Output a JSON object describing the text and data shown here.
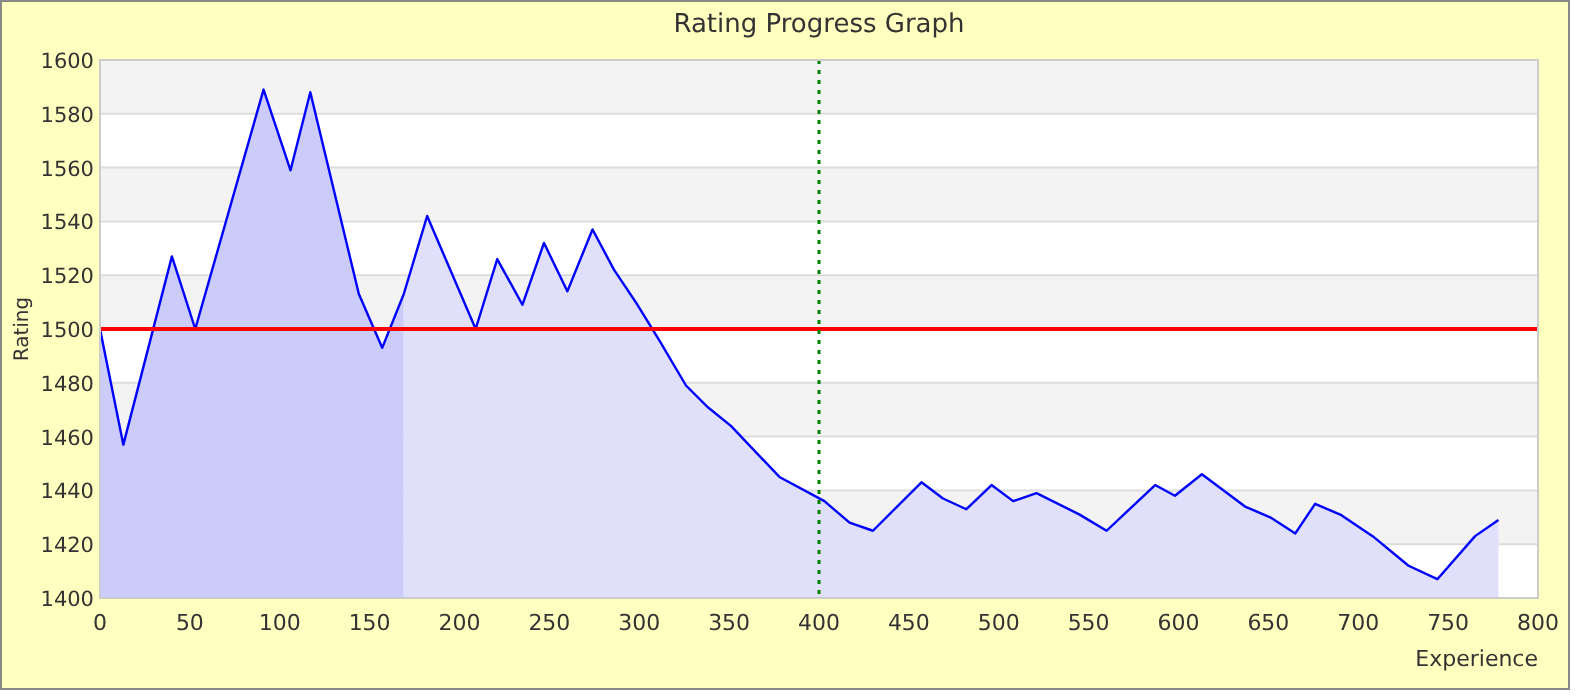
{
  "chart_data": {
    "type": "area",
    "title": "Rating Progress Graph",
    "xlabel": "Experience",
    "ylabel": "Rating",
    "xlim": [
      0,
      800
    ],
    "xticks": [
      0,
      50,
      100,
      150,
      200,
      250,
      300,
      350,
      400,
      450,
      500,
      550,
      600,
      650,
      700,
      750,
      800
    ],
    "ylim": [
      1400,
      1600
    ],
    "yticks": [
      1400,
      1420,
      1440,
      1460,
      1480,
      1500,
      1520,
      1540,
      1560,
      1580,
      1600
    ],
    "grid": "y",
    "series": [
      {
        "color": "#ccccfa",
        "x": [
          0,
          13,
          40,
          53,
          91,
          106,
          117,
          144,
          157,
          169
        ],
        "values": [
          1500,
          1457,
          1527,
          1500,
          1589,
          1559,
          1588,
          1513,
          1493,
          1513
        ]
      },
      {
        "color": "#e0e0fa",
        "x": [
          169,
          182,
          209,
          221,
          235,
          247,
          260,
          274,
          286,
          299,
          311,
          326,
          338,
          351,
          378,
          403,
          417,
          430,
          457,
          469,
          482,
          496,
          508,
          521,
          545,
          560,
          587,
          598,
          613,
          637,
          651,
          665,
          676,
          690,
          708,
          728,
          744,
          765,
          778
        ],
        "values": [
          1513,
          1542,
          1500,
          1526,
          1509,
          1532,
          1514,
          1537,
          1522,
          1509,
          1496,
          1479,
          1471,
          1464,
          1445,
          1436,
          1428,
          1425,
          1443,
          1437,
          1433,
          1442,
          1436,
          1439,
          1431,
          1425,
          1442,
          1438,
          1446,
          1434,
          1430,
          1424,
          1435,
          1431,
          1423,
          1412,
          1407,
          1423,
          1429
        ]
      },
      {
        "type": "line",
        "color": "#0000ff",
        "x": [
          0,
          13,
          40,
          53,
          91,
          106,
          117,
          144,
          157,
          169,
          182,
          209,
          221,
          235,
          247,
          260,
          274,
          286,
          299,
          311,
          326,
          338,
          351,
          378,
          403,
          417,
          430,
          457,
          469,
          482,
          496,
          508,
          521,
          545,
          560,
          587,
          598,
          613,
          637,
          651,
          665,
          676,
          690,
          708,
          728,
          744,
          765,
          778
        ],
        "values": [
          1500,
          1457,
          1527,
          1500,
          1589,
          1559,
          1588,
          1513,
          1493,
          1513,
          1542,
          1500,
          1526,
          1509,
          1532,
          1514,
          1537,
          1522,
          1509,
          1496,
          1479,
          1471,
          1464,
          1445,
          1436,
          1428,
          1425,
          1443,
          1437,
          1433,
          1442,
          1436,
          1439,
          1431,
          1425,
          1442,
          1438,
          1446,
          1434,
          1430,
          1424,
          1435,
          1431,
          1423,
          1412,
          1407,
          1423,
          1429
        ]
      }
    ],
    "ref_lines": [
      {
        "axis": "y",
        "value": 1500,
        "color": "#ff0000",
        "line_style": "solid"
      },
      {
        "axis": "x",
        "value": 400,
        "color": "#008000",
        "line_style": "dotted"
      }
    ]
  }
}
